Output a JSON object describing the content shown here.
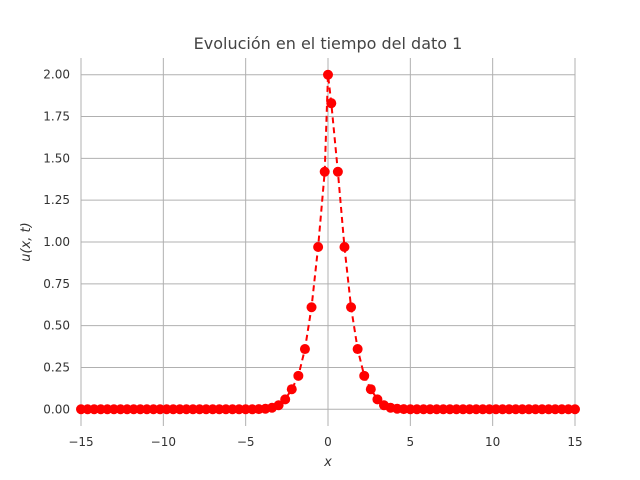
{
  "chart_data": {
    "type": "line",
    "title": "Evolución en el tiempo del dato 1",
    "xlabel": "x",
    "ylabel": "u(x, t)",
    "xlim": [
      -15,
      15
    ],
    "ylim": [
      -0.1,
      2.1
    ],
    "xticks": [
      -15,
      -10,
      -5,
      0,
      5,
      10,
      15
    ],
    "xtick_labels": [
      "−15",
      "−10",
      "−5",
      "0",
      "5",
      "10",
      "15"
    ],
    "yticks": [
      0,
      0.25,
      0.5,
      0.75,
      1.0,
      1.25,
      1.5,
      1.75,
      2.0
    ],
    "ytick_labels": [
      "0.00",
      "0.25",
      "0.50",
      "0.75",
      "1.00",
      "1.25",
      "1.50",
      "1.75",
      "2.00"
    ],
    "grid": true,
    "series": [
      {
        "color": "#ff0000",
        "line_style": "dashed",
        "marker": "circle",
        "x": [
          -15.0,
          -14.6,
          -14.2,
          -13.8,
          -13.4,
          -13.0,
          -12.6,
          -12.2,
          -11.8,
          -11.4,
          -11.0,
          -10.6,
          -10.2,
          -9.8,
          -9.4,
          -9.0,
          -8.6,
          -8.2,
          -7.8,
          -7.4,
          -7.0,
          -6.6,
          -6.2,
          -5.8,
          -5.4,
          -5.0,
          -4.6,
          -4.2,
          -3.8,
          -3.4,
          -3.0,
          -2.6,
          -2.2,
          -1.8,
          -1.4,
          -1.0,
          -0.6,
          -0.2,
          0.0,
          0.2,
          0.6,
          1.0,
          1.4,
          1.8,
          2.2,
          2.6,
          3.0,
          3.4,
          3.8,
          4.2,
          4.6,
          5.0,
          5.4,
          5.8,
          6.2,
          6.6,
          7.0,
          7.4,
          7.8,
          8.2,
          8.6,
          9.0,
          9.4,
          9.8,
          10.2,
          10.6,
          11.0,
          11.4,
          11.8,
          12.2,
          12.6,
          13.0,
          13.4,
          13.8,
          14.2,
          14.6,
          15.0
        ],
        "y": [
          0.0,
          0.0,
          0.0,
          0.0,
          0.0,
          0.0,
          0.0,
          0.0,
          0.0,
          0.0,
          0.0,
          0.0,
          0.0,
          0.0,
          0.0,
          0.0,
          0.0,
          0.0,
          0.0,
          0.0,
          0.0,
          0.0,
          0.0,
          0.0,
          0.0,
          0.0,
          0.0,
          0.001,
          0.003,
          0.009,
          0.024,
          0.059,
          0.12,
          0.2,
          0.36,
          0.61,
          0.97,
          1.42,
          2.0,
          1.83,
          1.42,
          0.97,
          0.61,
          0.36,
          0.2,
          0.12,
          0.059,
          0.024,
          0.009,
          0.003,
          0.001,
          0.0,
          0.0,
          0.0,
          0.0,
          0.0,
          0.0,
          0.0,
          0.0,
          0.0,
          0.0,
          0.0,
          0.0,
          0.0,
          0.0,
          0.0,
          0.0,
          0.0,
          0.0,
          0.0,
          0.0,
          0.0,
          0.0,
          0.0,
          0.0,
          0.0,
          0.0
        ]
      }
    ]
  }
}
